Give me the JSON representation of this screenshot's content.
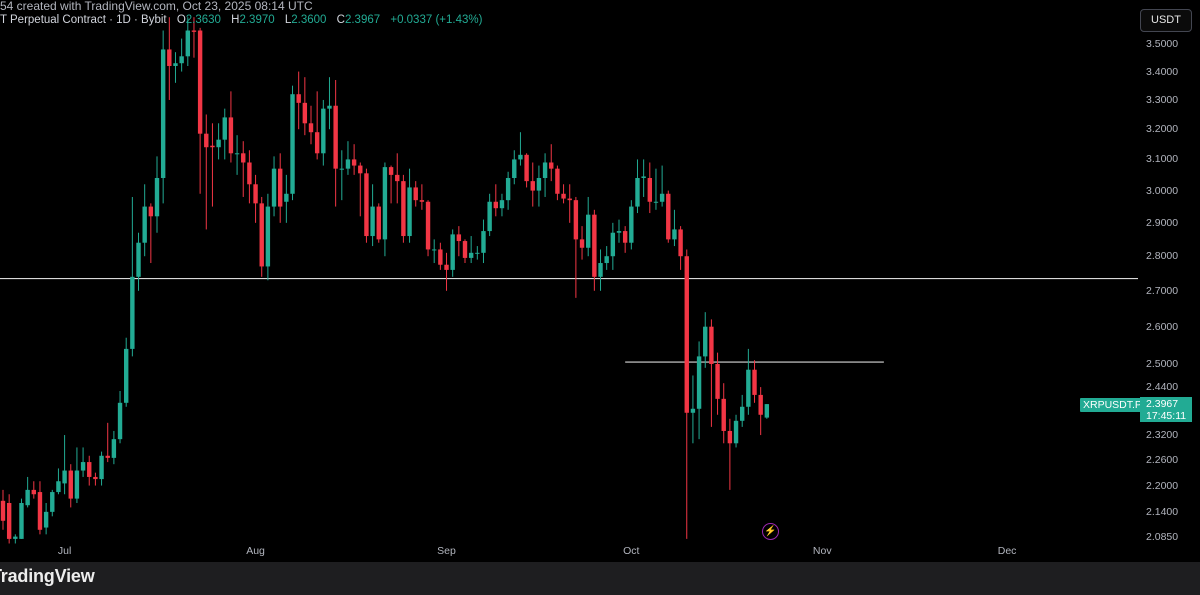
{
  "header": {
    "watermark_text": "54 created with TradingView.com, Oct 23, 2025 08:14 UTC",
    "symbol_desc": "T Perpetual Contract · 1D · Bybit",
    "o_label": "O",
    "o_value": "2.3630",
    "h_label": "H",
    "h_value": "2.3970",
    "l_label": "L",
    "l_value": "2.3600",
    "c_label": "C",
    "c_value": "2.3967",
    "change": "+0.0337 (+1.43%)"
  },
  "currency_button": "USDT",
  "price_tag": {
    "symbol": "XRPUSDT.P",
    "price": "2.3967",
    "countdown": "17:45:11"
  },
  "footer": {
    "logo_text": "TradingView"
  },
  "icons": {
    "bolt": "lightning-icon"
  },
  "colors": {
    "up": "#22ab94",
    "down": "#f23645",
    "background": "#000000",
    "hline": "#d9d9d9"
  },
  "chart_data": {
    "type": "candlestick",
    "scale": "log",
    "ylim": [
      2.08,
      3.6
    ],
    "grid": false,
    "y_ticks": [
      "3.5000",
      "3.4000",
      "3.3000",
      "3.2000",
      "3.1000",
      "3.0000",
      "2.9000",
      "2.8000",
      "2.7000",
      "2.6000",
      "2.5000",
      "2.4400",
      "2.3200",
      "2.2600",
      "2.2000",
      "2.1400",
      "2.0850"
    ],
    "x_ticks": [
      {
        "label": "Jul",
        "date": "2025-07-01"
      },
      {
        "label": "Aug",
        "date": "2025-08-01"
      },
      {
        "label": "Sep",
        "date": "2025-09-01"
      },
      {
        "label": "Oct",
        "date": "2025-10-01"
      },
      {
        "label": "Nov",
        "date": "2025-11-01"
      },
      {
        "label": "Dec",
        "date": "2025-12-01"
      }
    ],
    "horizontal_lines": [
      {
        "price": 2.735,
        "from": "full"
      },
      {
        "price": 2.505,
        "from_date": "2025-09-30",
        "to_date": "2025-11-11"
      }
    ],
    "candles_fields": [
      "date",
      "open",
      "high",
      "low",
      "close"
    ],
    "candles": [
      [
        "2025-06-21",
        2.165,
        2.19,
        2.1,
        2.12
      ],
      [
        "2025-06-22",
        2.16,
        2.18,
        2.07,
        2.08
      ],
      [
        "2025-06-23",
        2.08,
        2.09,
        2.07,
        2.085
      ],
      [
        "2025-06-24",
        2.08,
        2.17,
        2.08,
        2.16
      ],
      [
        "2025-06-25",
        2.155,
        2.22,
        2.15,
        2.19
      ],
      [
        "2025-06-26",
        2.19,
        2.21,
        2.17,
        2.18
      ],
      [
        "2025-06-27",
        2.185,
        2.21,
        2.09,
        2.1
      ],
      [
        "2025-06-28",
        2.105,
        2.16,
        2.09,
        2.14
      ],
      [
        "2025-06-29",
        2.14,
        2.19,
        2.13,
        2.185
      ],
      [
        "2025-06-30",
        2.185,
        2.24,
        2.18,
        2.21
      ],
      [
        "2025-07-01",
        2.205,
        2.32,
        2.18,
        2.235
      ],
      [
        "2025-07-02",
        2.235,
        2.25,
        2.15,
        2.17
      ],
      [
        "2025-07-03",
        2.17,
        2.29,
        2.16,
        2.235
      ],
      [
        "2025-07-04",
        2.235,
        2.29,
        2.22,
        2.255
      ],
      [
        "2025-07-05",
        2.255,
        2.27,
        2.2,
        2.22
      ],
      [
        "2025-07-06",
        2.22,
        2.23,
        2.2,
        2.215
      ],
      [
        "2025-07-07",
        2.215,
        2.28,
        2.2,
        2.27
      ],
      [
        "2025-07-08",
        2.27,
        2.35,
        2.255,
        2.265
      ],
      [
        "2025-07-09",
        2.265,
        2.33,
        2.25,
        2.31
      ],
      [
        "2025-07-10",
        2.31,
        2.43,
        2.3,
        2.4
      ],
      [
        "2025-07-11",
        2.4,
        2.57,
        2.39,
        2.54
      ],
      [
        "2025-07-12",
        2.54,
        2.98,
        2.52,
        2.74
      ],
      [
        "2025-07-13",
        2.74,
        2.87,
        2.7,
        2.84
      ],
      [
        "2025-07-14",
        2.84,
        3.02,
        2.8,
        2.95
      ],
      [
        "2025-07-15",
        2.95,
        2.96,
        2.78,
        2.92
      ],
      [
        "2025-07-16",
        2.92,
        3.11,
        2.87,
        3.04
      ],
      [
        "2025-07-17",
        3.04,
        3.55,
        2.96,
        3.48
      ],
      [
        "2025-07-18",
        3.48,
        3.6,
        3.3,
        3.42
      ],
      [
        "2025-07-19",
        3.42,
        3.47,
        3.36,
        3.43
      ],
      [
        "2025-07-20",
        3.43,
        3.52,
        3.4,
        3.455
      ],
      [
        "2025-07-21",
        3.455,
        3.6,
        3.42,
        3.55
      ],
      [
        "2025-07-22",
        3.55,
        3.6,
        3.45,
        3.545
      ],
      [
        "2025-07-23",
        3.55,
        3.56,
        2.99,
        3.185
      ],
      [
        "2025-07-24",
        3.185,
        3.25,
        2.88,
        3.14
      ],
      [
        "2025-07-25",
        3.145,
        3.22,
        2.95,
        3.14
      ],
      [
        "2025-07-26",
        3.14,
        3.22,
        3.1,
        3.165
      ],
      [
        "2025-07-27",
        3.165,
        3.27,
        3.1,
        3.24
      ],
      [
        "2025-07-28",
        3.24,
        3.33,
        3.09,
        3.12
      ],
      [
        "2025-07-29",
        3.12,
        3.18,
        3.05,
        3.12
      ],
      [
        "2025-07-30",
        3.12,
        3.16,
        2.98,
        3.09
      ],
      [
        "2025-07-31",
        3.09,
        3.13,
        2.96,
        3.02
      ],
      [
        "2025-08-01",
        3.02,
        3.05,
        2.9,
        2.96
      ],
      [
        "2025-08-02",
        2.96,
        2.98,
        2.74,
        2.77
      ],
      [
        "2025-08-03",
        2.77,
        2.99,
        2.73,
        2.95
      ],
      [
        "2025-08-04",
        2.95,
        3.11,
        2.92,
        3.07
      ],
      [
        "2025-08-05",
        3.07,
        3.12,
        2.9,
        2.95
      ],
      [
        "2025-08-06",
        2.965,
        3.05,
        2.9,
        2.99
      ],
      [
        "2025-08-07",
        2.99,
        3.35,
        2.97,
        3.32
      ],
      [
        "2025-08-08",
        3.32,
        3.4,
        3.2,
        3.29
      ],
      [
        "2025-08-09",
        3.29,
        3.38,
        3.18,
        3.22
      ],
      [
        "2025-08-10",
        3.22,
        3.28,
        3.15,
        3.19
      ],
      [
        "2025-08-11",
        3.19,
        3.33,
        3.1,
        3.12
      ],
      [
        "2025-08-12",
        3.12,
        3.3,
        3.08,
        3.27
      ],
      [
        "2025-08-13",
        3.27,
        3.38,
        3.2,
        3.28
      ],
      [
        "2025-08-14",
        3.28,
        3.37,
        2.95,
        3.07
      ],
      [
        "2025-08-15",
        3.07,
        3.13,
        2.97,
        3.07
      ],
      [
        "2025-08-16",
        3.07,
        3.16,
        3.05,
        3.1
      ],
      [
        "2025-08-17",
        3.1,
        3.15,
        3.05,
        3.08
      ],
      [
        "2025-08-18",
        3.08,
        3.09,
        2.92,
        3.055
      ],
      [
        "2025-08-19",
        3.055,
        3.07,
        2.84,
        2.86
      ],
      [
        "2025-08-20",
        2.86,
        3.02,
        2.83,
        2.95
      ],
      [
        "2025-08-21",
        2.95,
        2.96,
        2.84,
        2.85
      ],
      [
        "2025-08-22",
        2.85,
        3.09,
        2.8,
        3.075
      ],
      [
        "2025-08-23",
        3.075,
        3.08,
        2.96,
        3.05
      ],
      [
        "2025-08-24",
        3.05,
        3.12,
        2.96,
        3.03
      ],
      [
        "2025-08-25",
        3.03,
        3.05,
        2.84,
        2.86
      ],
      [
        "2025-08-26",
        2.86,
        3.07,
        2.84,
        3.01
      ],
      [
        "2025-08-27",
        3.01,
        3.03,
        2.95,
        2.97
      ],
      [
        "2025-08-28",
        2.97,
        3.02,
        2.94,
        2.965
      ],
      [
        "2025-08-29",
        2.965,
        2.97,
        2.8,
        2.82
      ],
      [
        "2025-08-30",
        2.82,
        2.85,
        2.78,
        2.82
      ],
      [
        "2025-08-31",
        2.82,
        2.84,
        2.76,
        2.775
      ],
      [
        "2025-09-01",
        2.775,
        2.81,
        2.7,
        2.76
      ],
      [
        "2025-09-02",
        2.76,
        2.88,
        2.74,
        2.865
      ],
      [
        "2025-09-03",
        2.865,
        2.89,
        2.8,
        2.845
      ],
      [
        "2025-09-04",
        2.845,
        2.85,
        2.78,
        2.795
      ],
      [
        "2025-09-05",
        2.795,
        2.86,
        2.78,
        2.81
      ],
      [
        "2025-09-06",
        2.81,
        2.83,
        2.79,
        2.81
      ],
      [
        "2025-09-07",
        2.81,
        2.91,
        2.78,
        2.875
      ],
      [
        "2025-09-08",
        2.875,
        2.99,
        2.86,
        2.965
      ],
      [
        "2025-09-09",
        2.965,
        3.02,
        2.92,
        2.945
      ],
      [
        "2025-09-10",
        2.945,
        2.99,
        2.92,
        2.97
      ],
      [
        "2025-09-11",
        2.97,
        3.06,
        2.94,
        3.04
      ],
      [
        "2025-09-12",
        3.04,
        3.13,
        3.02,
        3.1
      ],
      [
        "2025-09-13",
        3.1,
        3.19,
        3.08,
        3.115
      ],
      [
        "2025-09-14",
        3.115,
        3.12,
        3.01,
        3.03
      ],
      [
        "2025-09-15",
        3.03,
        3.09,
        2.95,
        3.0
      ],
      [
        "2025-09-16",
        3.0,
        3.08,
        2.95,
        3.04
      ],
      [
        "2025-09-17",
        3.04,
        3.12,
        2.98,
        3.09
      ],
      [
        "2025-09-18",
        3.09,
        3.15,
        3.03,
        3.07
      ],
      [
        "2025-09-19",
        3.07,
        3.08,
        2.97,
        2.99
      ],
      [
        "2025-09-20",
        2.99,
        3.02,
        2.96,
        2.975
      ],
      [
        "2025-09-21",
        2.975,
        3.02,
        2.9,
        2.97
      ],
      [
        "2025-09-22",
        2.97,
        2.98,
        2.68,
        2.85
      ],
      [
        "2025-09-23",
        2.85,
        2.89,
        2.79,
        2.825
      ],
      [
        "2025-09-24",
        2.825,
        2.98,
        2.8,
        2.925
      ],
      [
        "2025-09-25",
        2.925,
        2.94,
        2.7,
        2.74
      ],
      [
        "2025-09-26",
        2.74,
        2.82,
        2.7,
        2.78
      ],
      [
        "2025-09-27",
        2.78,
        2.83,
        2.76,
        2.8
      ],
      [
        "2025-09-28",
        2.8,
        2.9,
        2.76,
        2.87
      ],
      [
        "2025-09-29",
        2.87,
        2.91,
        2.84,
        2.875
      ],
      [
        "2025-09-30",
        2.875,
        2.89,
        2.81,
        2.84
      ],
      [
        "2025-10-01",
        2.84,
        2.97,
        2.82,
        2.95
      ],
      [
        "2025-10-02",
        2.95,
        3.1,
        2.93,
        3.04
      ],
      [
        "2025-10-03",
        3.04,
        3.1,
        2.98,
        3.045
      ],
      [
        "2025-10-04",
        3.04,
        3.09,
        2.93,
        2.965
      ],
      [
        "2025-10-05",
        2.965,
        3.07,
        2.94,
        2.965
      ],
      [
        "2025-10-06",
        2.965,
        3.08,
        2.95,
        2.99
      ],
      [
        "2025-10-07",
        2.99,
        3.0,
        2.84,
        2.85
      ],
      [
        "2025-10-08",
        2.85,
        2.94,
        2.83,
        2.88
      ],
      [
        "2025-10-09",
        2.88,
        2.89,
        2.76,
        2.8
      ],
      [
        "2025-10-10",
        2.8,
        2.82,
        2.08,
        2.375
      ],
      [
        "2025-10-11",
        2.375,
        2.47,
        2.3,
        2.385
      ],
      [
        "2025-10-12",
        2.385,
        2.56,
        2.31,
        2.52
      ],
      [
        "2025-10-13",
        2.52,
        2.64,
        2.49,
        2.6
      ],
      [
        "2025-10-14",
        2.6,
        2.62,
        2.34,
        2.5
      ],
      [
        "2025-10-15",
        2.5,
        2.53,
        2.37,
        2.41
      ],
      [
        "2025-10-16",
        2.41,
        2.45,
        2.3,
        2.33
      ],
      [
        "2025-10-17",
        2.33,
        2.36,
        2.19,
        2.3
      ],
      [
        "2025-10-18",
        2.3,
        2.37,
        2.29,
        2.355
      ],
      [
        "2025-10-19",
        2.355,
        2.42,
        2.34,
        2.39
      ],
      [
        "2025-10-20",
        2.39,
        2.54,
        2.37,
        2.485
      ],
      [
        "2025-10-21",
        2.485,
        2.51,
        2.4,
        2.42
      ],
      [
        "2025-10-22",
        2.42,
        2.44,
        2.32,
        2.37
      ],
      [
        "2025-10-23",
        2.363,
        2.397,
        2.36,
        2.3967
      ]
    ]
  }
}
